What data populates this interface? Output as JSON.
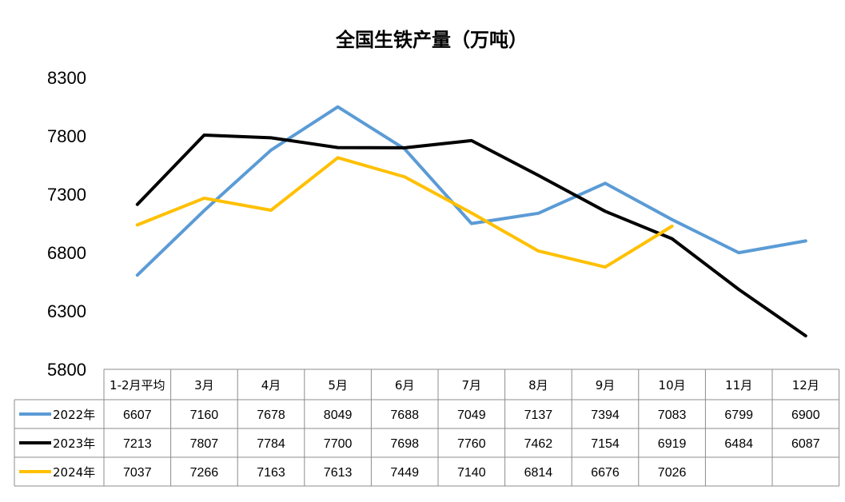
{
  "chart_data": {
    "type": "line",
    "title": "全国生铁产量（万吨）",
    "categories": [
      "1-2月平均",
      "3月",
      "4月",
      "5月",
      "6月",
      "7月",
      "8月",
      "9月",
      "10月",
      "11月",
      "12月"
    ],
    "series": [
      {
        "name": "2022年",
        "color": "#5B9BD5",
        "values": [
          6607,
          7160,
          7678,
          8049,
          7688,
          7049,
          7137,
          7394,
          7083,
          6799,
          6900
        ]
      },
      {
        "name": "2023年",
        "color": "#000000",
        "values": [
          7213,
          7807,
          7784,
          7700,
          7698,
          7760,
          7462,
          7154,
          6919,
          6484,
          6087
        ]
      },
      {
        "name": "2024年",
        "color": "#FFC000",
        "values": [
          7037,
          7266,
          7163,
          7613,
          7449,
          7140,
          6814,
          6676,
          7026,
          null,
          null
        ]
      }
    ],
    "yticks": [
      "8300",
      "7800",
      "7300",
      "6800",
      "6300",
      "5800"
    ],
    "ylim": [
      5800,
      8300
    ],
    "grid": false,
    "legend": "data-table"
  }
}
